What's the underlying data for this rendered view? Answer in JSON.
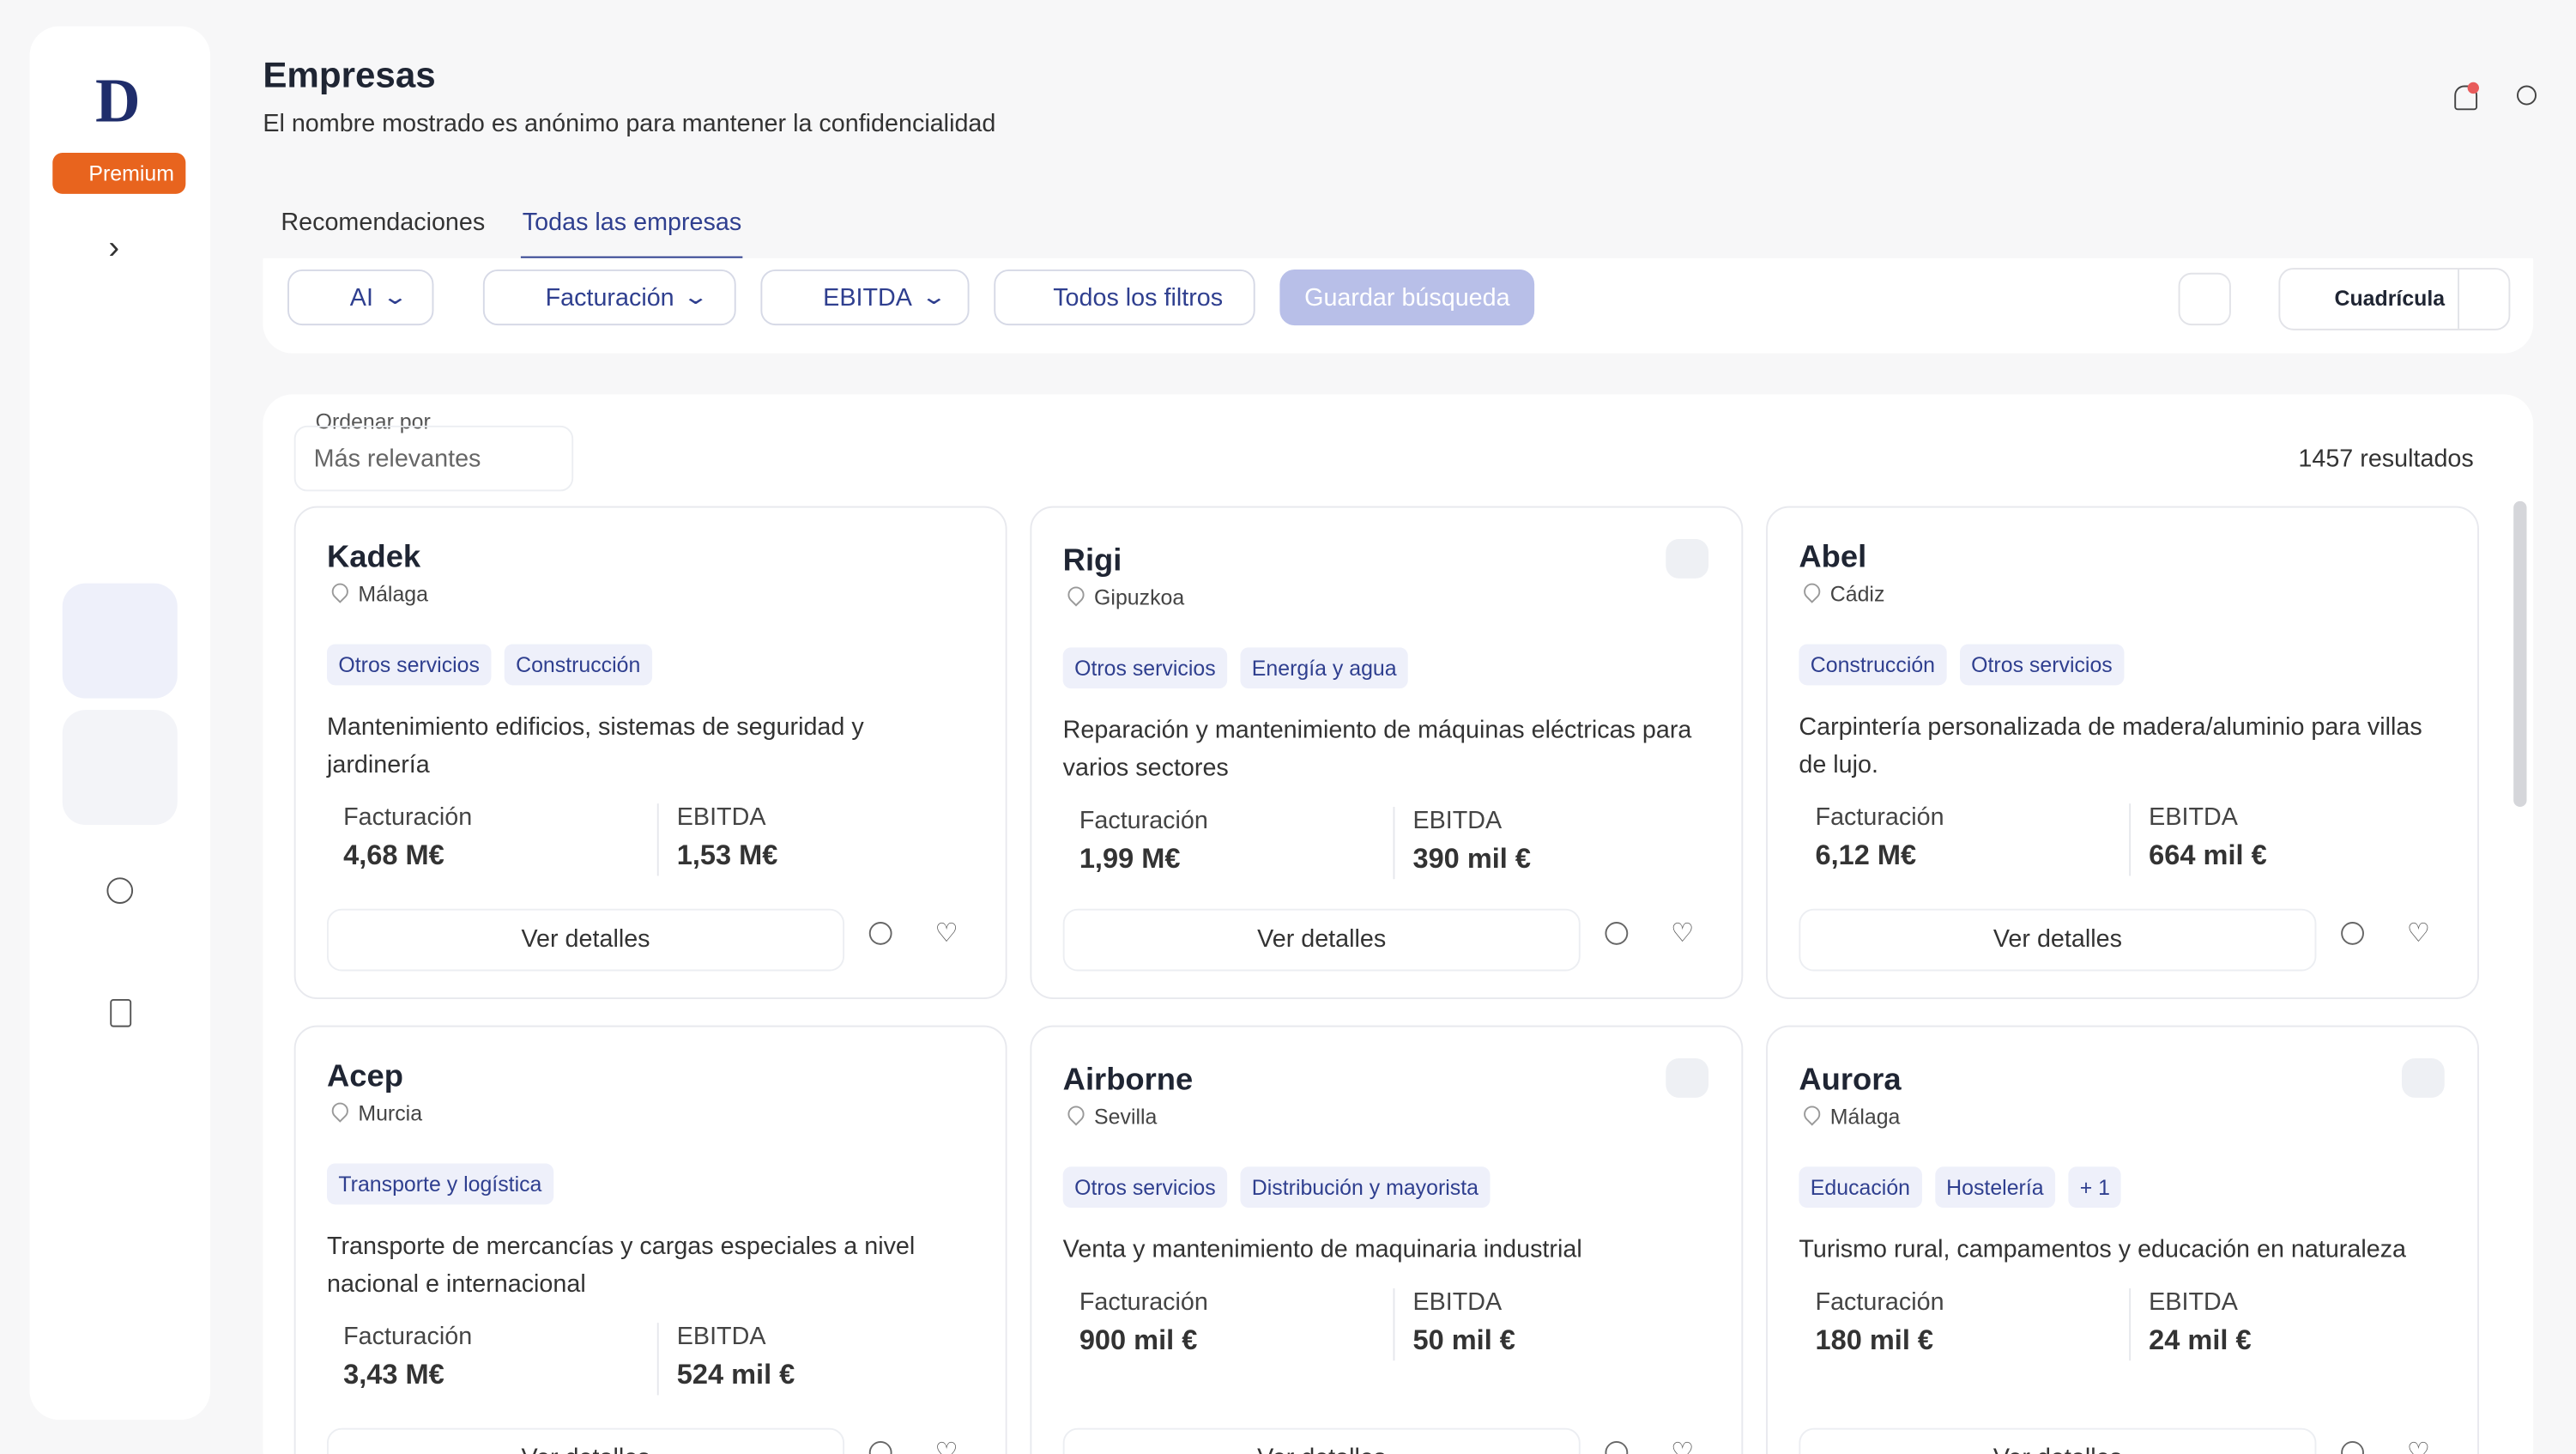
{
  "logo": "D",
  "badge": "Premium",
  "header": {
    "title": "Empresas",
    "subtitle": "El nombre mostrado es anónimo para mantener la confidencialidad"
  },
  "tabs": [
    "Recomendaciones",
    "Todas las empresas"
  ],
  "active_tab": 1,
  "filters": [
    "AI",
    "Facturación",
    "EBITDA",
    "Todos los filtros"
  ],
  "save_search": "Guardar búsqueda",
  "view_mode": "Cuadrícula",
  "sort": {
    "label": "Ordenar por",
    "value": "Más relevantes"
  },
  "results": "1457 resultados",
  "card_labels": {
    "revenue": "Facturación",
    "ebitda": "EBITDA",
    "details": "Ver detalles"
  },
  "companies": [
    {
      "name": "Kadek",
      "location": "Málaga",
      "tags": [
        "Otros servicios",
        "Construcción"
      ],
      "description": "Mantenimiento edificios, sistemas de seguridad y jardinería",
      "revenue": "4,68 M€",
      "ebitda": "1,53 M€",
      "viewed": false
    },
    {
      "name": "Rigi",
      "location": "Gipuzkoa",
      "tags": [
        "Otros servicios",
        "Energía y agua"
      ],
      "description": "Reparación y mantenimiento de máquinas eléctricas para varios sectores",
      "revenue": "1,99 M€",
      "ebitda": "390 mil €",
      "viewed": true
    },
    {
      "name": "Abel",
      "location": "Cádiz",
      "tags": [
        "Construcción",
        "Otros servicios"
      ],
      "description": "Carpintería personalizada de madera/aluminio para villas de lujo.",
      "revenue": "6,12 M€",
      "ebitda": "664 mil €",
      "viewed": false
    },
    {
      "name": "Acep",
      "location": "Murcia",
      "tags": [
        "Transporte y logística"
      ],
      "description": "Transporte de mercancías y cargas especiales a nivel nacional e internacional",
      "revenue": "3,43 M€",
      "ebitda": "524 mil €",
      "viewed": false
    },
    {
      "name": "Airborne",
      "location": "Sevilla",
      "tags": [
        "Otros servicios",
        "Distribución y mayorista"
      ],
      "description": "Venta y mantenimiento de maquinaria industrial",
      "revenue": "900 mil €",
      "ebitda": "50 mil €",
      "viewed": true
    },
    {
      "name": "Aurora",
      "location": "Málaga",
      "tags": [
        "Educación",
        "Hostelería",
        "+ 1"
      ],
      "description": "Turismo rural, campamentos y educación en naturaleza",
      "revenue": "180 mil €",
      "ebitda": "24 mil €",
      "viewed": true
    }
  ]
}
